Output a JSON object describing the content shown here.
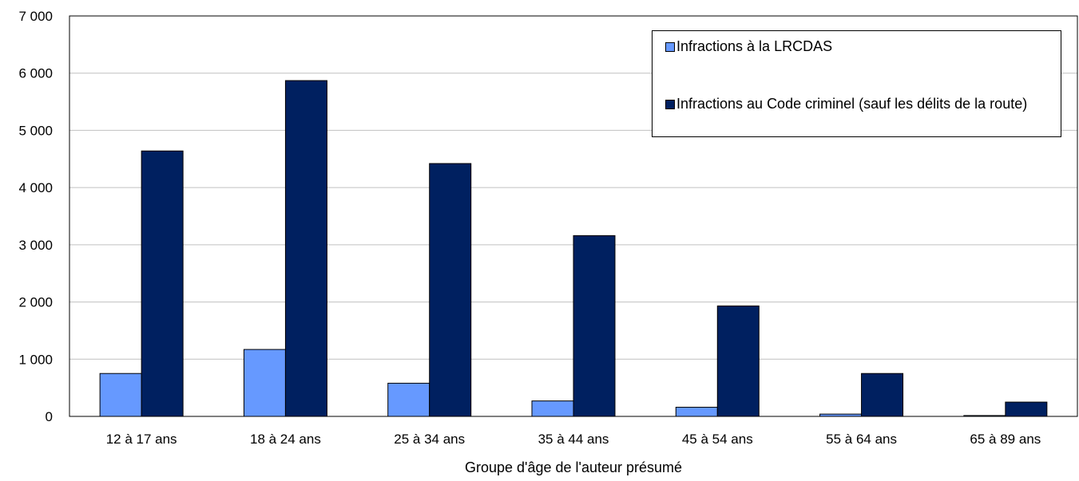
{
  "chart_data": {
    "type": "bar",
    "categories": [
      "12 à 17 ans",
      "18 à 24 ans",
      "25 à 34 ans",
      "35 à 44 ans",
      "45 à 54 ans",
      "55 à 64 ans",
      "65 à 89 ans"
    ],
    "series": [
      {
        "name": "Infractions à la LRCDAS",
        "color": "#6699ff",
        "values": [
          750,
          1170,
          580,
          270,
          160,
          40,
          15
        ]
      },
      {
        "name": "Infractions au Code criminel (sauf les délits de la route)",
        "color": "#002060",
        "values": [
          4640,
          5870,
          4420,
          3160,
          1930,
          750,
          250
        ]
      }
    ],
    "xlabel": "Groupe d'âge de l'auteur présumé",
    "ylabel": "",
    "ylim": [
      0,
      7000
    ],
    "yticks": [
      0,
      1000,
      2000,
      3000,
      4000,
      5000,
      6000,
      7000
    ],
    "ytick_labels": [
      "0",
      "1 000",
      "2 000",
      "3 000",
      "4 000",
      "5 000",
      "6 000",
      "7 000"
    ],
    "grid": true,
    "legend_position": "top-right"
  }
}
